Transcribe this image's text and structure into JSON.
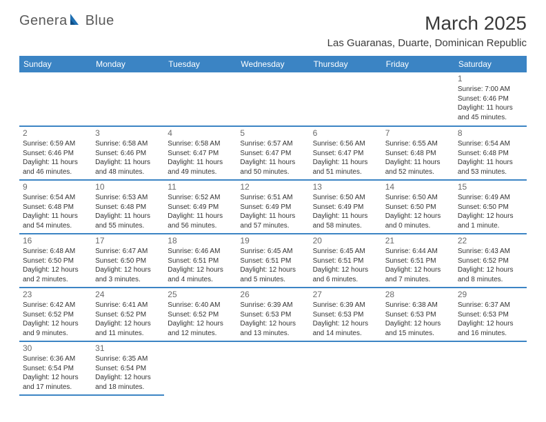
{
  "logo": {
    "text1": "Genera",
    "text2": "Blue"
  },
  "title": "March 2025",
  "location": "Las Guaranas, Duarte, Dominican Republic",
  "header_bg": "#3b84c4",
  "header_fg": "#ffffff",
  "row_divider_color": "#3b84c4",
  "cell_divider_color": "#b8b8b8",
  "text_color": "#333333",
  "daynum_color": "#6a6a6a",
  "font_family": "Arial",
  "day_headers": [
    "Sunday",
    "Monday",
    "Tuesday",
    "Wednesday",
    "Thursday",
    "Friday",
    "Saturday"
  ],
  "weeks": [
    [
      null,
      null,
      null,
      null,
      null,
      null,
      {
        "n": "1",
        "sr": "Sunrise: 7:00 AM",
        "ss": "Sunset: 6:46 PM",
        "dl": "Daylight: 11 hours and 45 minutes."
      }
    ],
    [
      {
        "n": "2",
        "sr": "Sunrise: 6:59 AM",
        "ss": "Sunset: 6:46 PM",
        "dl": "Daylight: 11 hours and 46 minutes."
      },
      {
        "n": "3",
        "sr": "Sunrise: 6:58 AM",
        "ss": "Sunset: 6:46 PM",
        "dl": "Daylight: 11 hours and 48 minutes."
      },
      {
        "n": "4",
        "sr": "Sunrise: 6:58 AM",
        "ss": "Sunset: 6:47 PM",
        "dl": "Daylight: 11 hours and 49 minutes."
      },
      {
        "n": "5",
        "sr": "Sunrise: 6:57 AM",
        "ss": "Sunset: 6:47 PM",
        "dl": "Daylight: 11 hours and 50 minutes."
      },
      {
        "n": "6",
        "sr": "Sunrise: 6:56 AM",
        "ss": "Sunset: 6:47 PM",
        "dl": "Daylight: 11 hours and 51 minutes."
      },
      {
        "n": "7",
        "sr": "Sunrise: 6:55 AM",
        "ss": "Sunset: 6:48 PM",
        "dl": "Daylight: 11 hours and 52 minutes."
      },
      {
        "n": "8",
        "sr": "Sunrise: 6:54 AM",
        "ss": "Sunset: 6:48 PM",
        "dl": "Daylight: 11 hours and 53 minutes."
      }
    ],
    [
      {
        "n": "9",
        "sr": "Sunrise: 6:54 AM",
        "ss": "Sunset: 6:48 PM",
        "dl": "Daylight: 11 hours and 54 minutes."
      },
      {
        "n": "10",
        "sr": "Sunrise: 6:53 AM",
        "ss": "Sunset: 6:48 PM",
        "dl": "Daylight: 11 hours and 55 minutes."
      },
      {
        "n": "11",
        "sr": "Sunrise: 6:52 AM",
        "ss": "Sunset: 6:49 PM",
        "dl": "Daylight: 11 hours and 56 minutes."
      },
      {
        "n": "12",
        "sr": "Sunrise: 6:51 AM",
        "ss": "Sunset: 6:49 PM",
        "dl": "Daylight: 11 hours and 57 minutes."
      },
      {
        "n": "13",
        "sr": "Sunrise: 6:50 AM",
        "ss": "Sunset: 6:49 PM",
        "dl": "Daylight: 11 hours and 58 minutes."
      },
      {
        "n": "14",
        "sr": "Sunrise: 6:50 AM",
        "ss": "Sunset: 6:50 PM",
        "dl": "Daylight: 12 hours and 0 minutes."
      },
      {
        "n": "15",
        "sr": "Sunrise: 6:49 AM",
        "ss": "Sunset: 6:50 PM",
        "dl": "Daylight: 12 hours and 1 minute."
      }
    ],
    [
      {
        "n": "16",
        "sr": "Sunrise: 6:48 AM",
        "ss": "Sunset: 6:50 PM",
        "dl": "Daylight: 12 hours and 2 minutes."
      },
      {
        "n": "17",
        "sr": "Sunrise: 6:47 AM",
        "ss": "Sunset: 6:50 PM",
        "dl": "Daylight: 12 hours and 3 minutes."
      },
      {
        "n": "18",
        "sr": "Sunrise: 6:46 AM",
        "ss": "Sunset: 6:51 PM",
        "dl": "Daylight: 12 hours and 4 minutes."
      },
      {
        "n": "19",
        "sr": "Sunrise: 6:45 AM",
        "ss": "Sunset: 6:51 PM",
        "dl": "Daylight: 12 hours and 5 minutes."
      },
      {
        "n": "20",
        "sr": "Sunrise: 6:45 AM",
        "ss": "Sunset: 6:51 PM",
        "dl": "Daylight: 12 hours and 6 minutes."
      },
      {
        "n": "21",
        "sr": "Sunrise: 6:44 AM",
        "ss": "Sunset: 6:51 PM",
        "dl": "Daylight: 12 hours and 7 minutes."
      },
      {
        "n": "22",
        "sr": "Sunrise: 6:43 AM",
        "ss": "Sunset: 6:52 PM",
        "dl": "Daylight: 12 hours and 8 minutes."
      }
    ],
    [
      {
        "n": "23",
        "sr": "Sunrise: 6:42 AM",
        "ss": "Sunset: 6:52 PM",
        "dl": "Daylight: 12 hours and 9 minutes."
      },
      {
        "n": "24",
        "sr": "Sunrise: 6:41 AM",
        "ss": "Sunset: 6:52 PM",
        "dl": "Daylight: 12 hours and 11 minutes."
      },
      {
        "n": "25",
        "sr": "Sunrise: 6:40 AM",
        "ss": "Sunset: 6:52 PM",
        "dl": "Daylight: 12 hours and 12 minutes."
      },
      {
        "n": "26",
        "sr": "Sunrise: 6:39 AM",
        "ss": "Sunset: 6:53 PM",
        "dl": "Daylight: 12 hours and 13 minutes."
      },
      {
        "n": "27",
        "sr": "Sunrise: 6:39 AM",
        "ss": "Sunset: 6:53 PM",
        "dl": "Daylight: 12 hours and 14 minutes."
      },
      {
        "n": "28",
        "sr": "Sunrise: 6:38 AM",
        "ss": "Sunset: 6:53 PM",
        "dl": "Daylight: 12 hours and 15 minutes."
      },
      {
        "n": "29",
        "sr": "Sunrise: 6:37 AM",
        "ss": "Sunset: 6:53 PM",
        "dl": "Daylight: 12 hours and 16 minutes."
      }
    ],
    [
      {
        "n": "30",
        "sr": "Sunrise: 6:36 AM",
        "ss": "Sunset: 6:54 PM",
        "dl": "Daylight: 12 hours and 17 minutes."
      },
      {
        "n": "31",
        "sr": "Sunrise: 6:35 AM",
        "ss": "Sunset: 6:54 PM",
        "dl": "Daylight: 12 hours and 18 minutes."
      },
      null,
      null,
      null,
      null,
      null
    ]
  ]
}
